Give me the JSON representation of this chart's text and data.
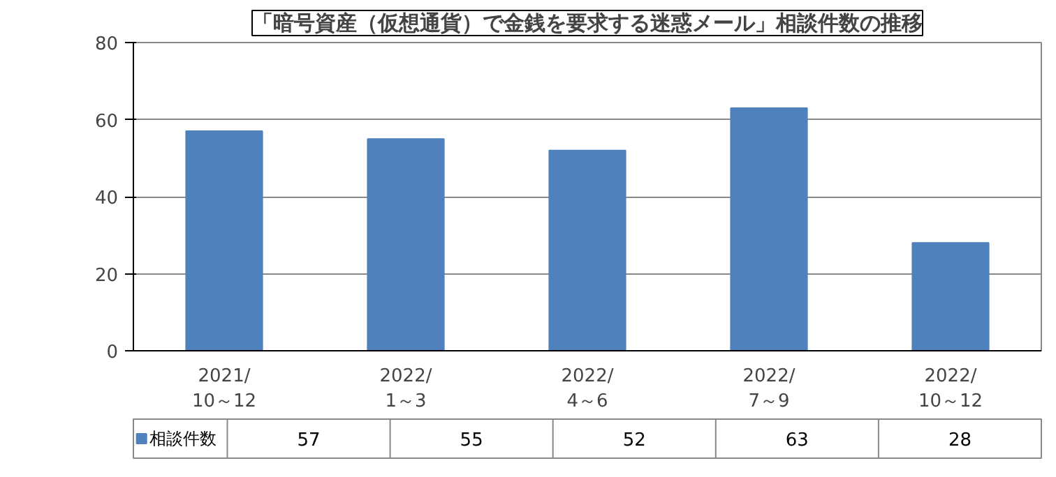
{
  "chart_data": {
    "type": "bar",
    "title": "「暗号資産（仮想通貨）で金銭を要求する迷惑メール」相談件数の推移",
    "categories": [
      "2021/\n10～12",
      "2022/\n1～3",
      "2022/\n4～6",
      "2022/\n7～9",
      "2022/\n10～12"
    ],
    "series": [
      {
        "name": "相談件数",
        "color": "#4f81bd",
        "values": [
          57,
          55,
          52,
          63,
          28
        ]
      }
    ],
    "ylim": [
      0,
      80
    ],
    "yticks": [
      0,
      20,
      40,
      60,
      80
    ],
    "grid": "y",
    "data_labels": true,
    "legend": "bottom"
  }
}
